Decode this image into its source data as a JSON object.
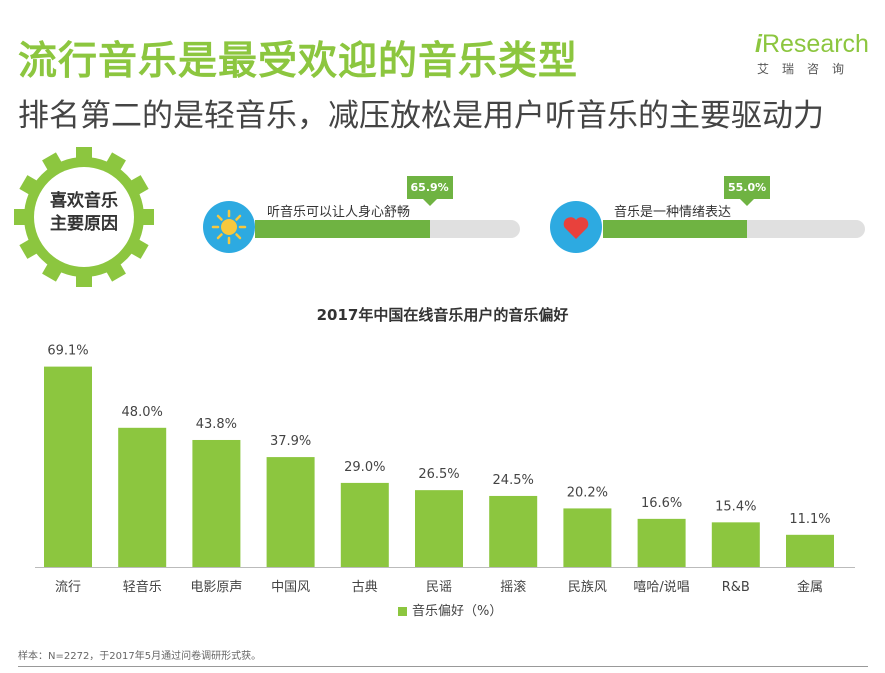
{
  "header": {
    "title": "流行音乐是最受欢迎的音乐类型",
    "subtitle": "排名第二的是轻音乐，减压放松是用户听音乐的主要驱动力"
  },
  "logo": {
    "i": "i",
    "brand": "Research",
    "sub": "艾瑞咨询"
  },
  "reasons": {
    "heading_line1": "喜欢音乐",
    "heading_line2": "主要原因",
    "items": [
      {
        "label": "听音乐可以让人身心舒畅",
        "value": 65.9,
        "value_text": "65.9%",
        "icon": "sun-icon"
      },
      {
        "label": "音乐是一种情绪表达",
        "value": 55.0,
        "value_text": "55.0%",
        "icon": "heart-icon"
      }
    ]
  },
  "colors": {
    "accent": "#8cc63f",
    "bar": "#8cc63f",
    "progress": "#6fb342",
    "icon_bg": "#2daae1"
  },
  "chart_data": {
    "type": "bar",
    "title": "2017年中国在线音乐用户的音乐偏好",
    "categories": [
      "流行",
      "轻音乐",
      "电影原声",
      "中国风",
      "古典",
      "民谣",
      "摇滚",
      "民族风",
      "嘻哈/说唱",
      "R&B",
      "金属"
    ],
    "series": [
      {
        "name": "音乐偏好（%）",
        "values": [
          69.1,
          48.0,
          43.8,
          37.9,
          29.0,
          26.5,
          24.5,
          20.2,
          16.6,
          15.4,
          11.1
        ]
      }
    ],
    "labels": [
      "69.1%",
      "48.0%",
      "43.8%",
      "37.9%",
      "29.0%",
      "26.5%",
      "24.5%",
      "20.2%",
      "16.6%",
      "15.4%",
      "11.1%"
    ],
    "legend": "音乐偏好（%）",
    "legend_position": "bottom",
    "xlabel": "",
    "ylabel": "",
    "ylim": [
      0,
      80
    ],
    "grid": false
  },
  "footnote": "样本：N=2272，于2017年5月通过问卷调研形式获。"
}
